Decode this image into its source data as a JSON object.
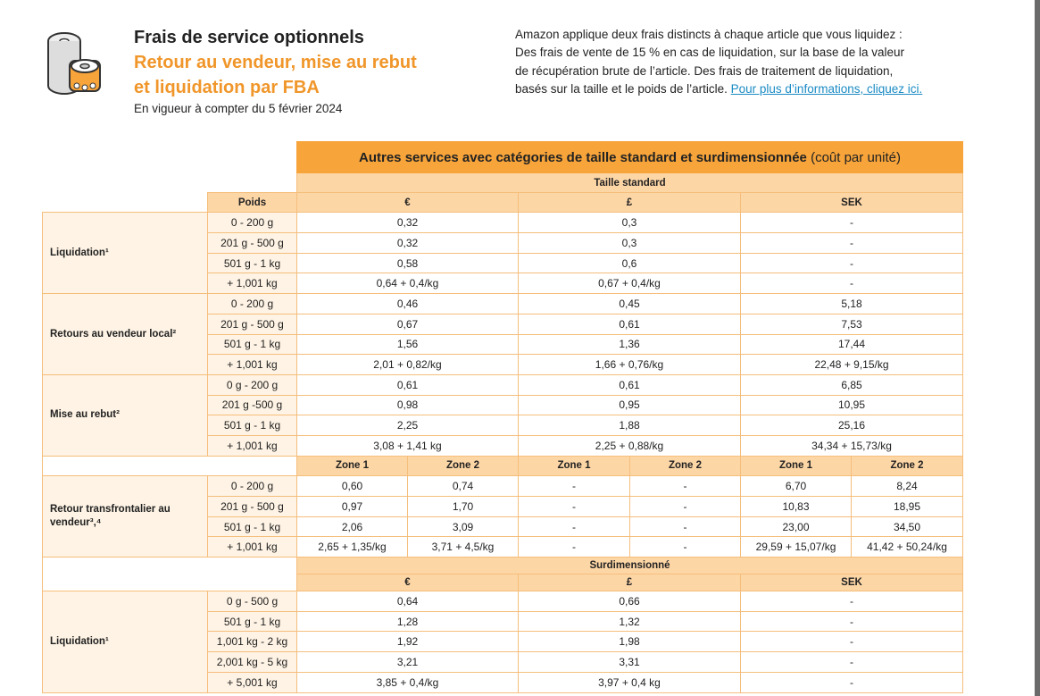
{
  "header": {
    "title": "Frais de service optionnels",
    "subtitle": [
      "Retour au vendeur, mise au rebut",
      "et liquidation par FBA"
    ],
    "effective": "En vigueur à compter du 5 février 2024",
    "description": [
      "Amazon applique deux frais distincts à chaque article que vous liquidez :",
      "Des frais de vente de 15 % en cas de liquidation, sur la base de la valeur",
      "de récupération brute de l’article. Des frais de traitement de liquidation,",
      "basés sur la taille et le poids de l’article."
    ],
    "link": "Pour plus d’informations, cliquez ici."
  },
  "table": {
    "caption": "Autres services avec catégories de taille standard et surdimensionnée",
    "caption_note": "(coût par unité)",
    "standard_label": "Taille standard",
    "weight_header": "Poids",
    "currencies": [
      "€",
      "£",
      "SEK"
    ],
    "groups": [
      {
        "label": "Liquidation¹",
        "rows": [
          {
            "weight": "0 - 200 g",
            "values": [
              "0,32",
              "0,3",
              "-"
            ]
          },
          {
            "weight": "201 g - 500 g",
            "values": [
              "0,32",
              "0,3",
              "-"
            ]
          },
          {
            "weight": "501 g - 1 kg",
            "values": [
              "0,58",
              "0,6",
              "-"
            ]
          },
          {
            "weight": "+ 1,001 kg",
            "values": [
              "0,64 + 0,4/kg",
              "0,67 + 0,4/kg",
              "-"
            ]
          }
        ]
      },
      {
        "label": "Retours au vendeur local²",
        "rows": [
          {
            "weight": "0 - 200 g",
            "values": [
              "0,46",
              "0,45",
              "5,18"
            ]
          },
          {
            "weight": "201 g - 500 g",
            "values": [
              "0,67",
              "0,61",
              "7,53"
            ]
          },
          {
            "weight": "501 g - 1 kg",
            "values": [
              "1,56",
              "1,36",
              "17,44"
            ]
          },
          {
            "weight": "+ 1,001 kg",
            "values": [
              "2,01 + 0,82/kg",
              "1,66 + 0,76/kg",
              "22,48 + 9,15/kg"
            ]
          }
        ]
      },
      {
        "label": "Mise au rebut²",
        "rows": [
          {
            "weight": "0 g - 200 g",
            "values": [
              "0,61",
              "0,61",
              "6,85"
            ]
          },
          {
            "weight": "201 g -500 g",
            "values": [
              "0,98",
              "0,95",
              "10,95"
            ]
          },
          {
            "weight": "501 g - 1 kg",
            "values": [
              "2,25",
              "1,88",
              "25,16"
            ]
          },
          {
            "weight": "+ 1,001 kg",
            "values": [
              "3,08 + 1,41 kg",
              "2,25 + 0,88/kg",
              "34,34 + 15,73/kg"
            ]
          }
        ]
      }
    ],
    "zone_headers": [
      "Zone 1",
      "Zone 2",
      "Zone 1",
      "Zone 2",
      "Zone 1",
      "Zone 2"
    ],
    "cross_border": {
      "label": "Retour transfrontalier au vendeur³,⁴",
      "rows": [
        {
          "weight": "0 - 200 g",
          "values": [
            "0,60",
            "0,74",
            "-",
            "-",
            "6,70",
            "8,24"
          ]
        },
        {
          "weight": "201 g - 500 g",
          "values": [
            "0,97",
            "1,70",
            "-",
            "-",
            "10,83",
            "18,95"
          ]
        },
        {
          "weight": "501 g - 1 kg",
          "values": [
            "2,06",
            "3,09",
            "-",
            "-",
            "23,00",
            "34,50"
          ]
        },
        {
          "weight": "+ 1,001 kg",
          "values": [
            "2,65 + 1,35/kg",
            "3,71 + 4,5/kg",
            "-",
            "-",
            "29,59 + 15,07/kg",
            "41,42 + 50,24/kg"
          ]
        }
      ]
    },
    "oversize_label": "Surdimensionné",
    "oversize_currencies": [
      "€",
      "£",
      "SEK"
    ],
    "oversize_groups": [
      {
        "label": "Liquidation¹",
        "rows": [
          {
            "weight": "0 g - 500 g",
            "values": [
              "0,64",
              "0,66",
              "-"
            ]
          },
          {
            "weight": "501 g - 1 kg",
            "values": [
              "1,28",
              "1,32",
              "-"
            ]
          },
          {
            "weight": "1,001 kg - 2 kg",
            "values": [
              "1,92",
              "1,98",
              "-"
            ]
          },
          {
            "weight": "2,001 kg - 5 kg",
            "values": [
              "3,21",
              "3,31",
              "-"
            ]
          },
          {
            "weight": "+ 5,001 kg",
            "values": [
              "3,85 + 0,4/kg",
              "3,97 + 0,4 kg",
              "-"
            ]
          }
        ]
      }
    ]
  }
}
